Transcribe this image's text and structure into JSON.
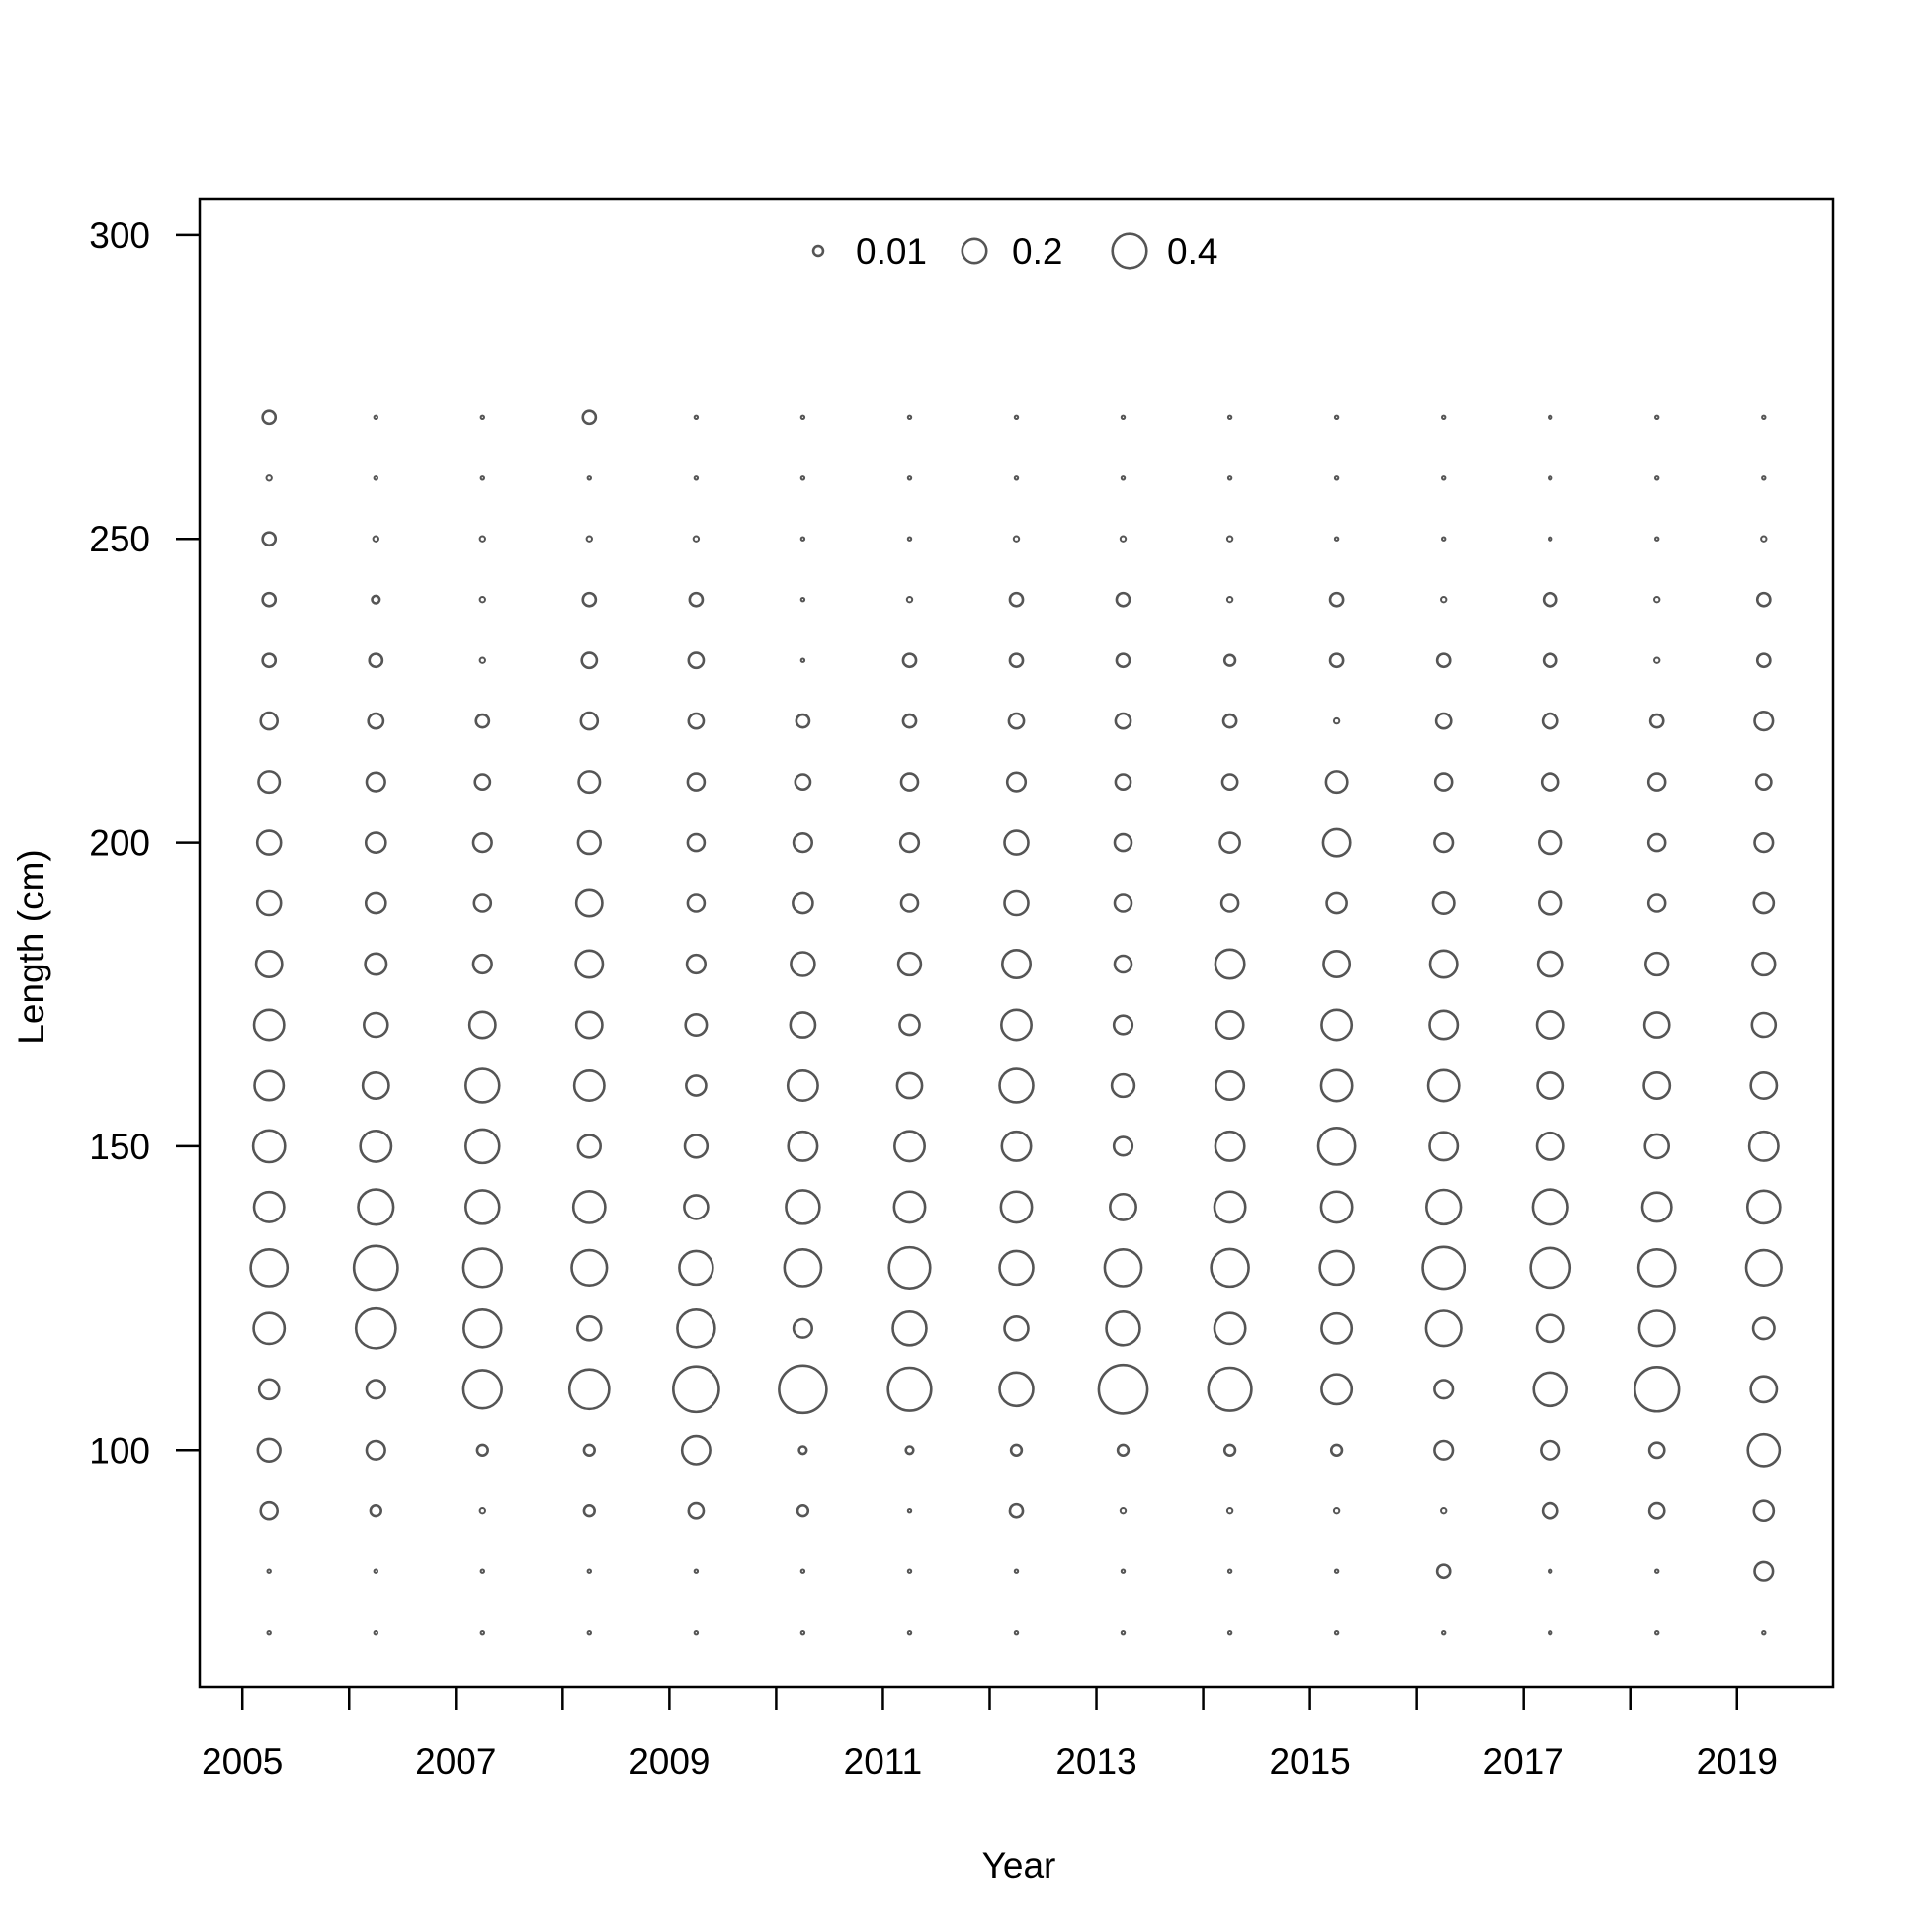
{
  "chart_data": {
    "type": "scatter",
    "subtype": "bubble",
    "title": "",
    "xlabel": "Year",
    "ylabel": "Length (cm)",
    "xlim": [
      2004.6,
      2019.9
    ],
    "ylim": [
      61,
      306
    ],
    "x_ticks": [
      2005,
      2006,
      2007,
      2008,
      2009,
      2010,
      2011,
      2012,
      2013,
      2014,
      2015,
      2016,
      2017,
      2018,
      2019
    ],
    "x_tick_labels": [
      "2005",
      "",
      "2007",
      "",
      "2009",
      "",
      "2011",
      "",
      "2013",
      "",
      "2015",
      "",
      "2017",
      "",
      "2019"
    ],
    "y_ticks": [
      100,
      150,
      200,
      250,
      300
    ],
    "y_tick_labels": [
      "100",
      "150",
      "200",
      "250",
      "300"
    ],
    "point_color": "#555555",
    "legend": {
      "placement": "top-center",
      "entries": [
        {
          "label": "0.01",
          "value": 0.01
        },
        {
          "label": "0.2",
          "value": 0.2
        },
        {
          "label": "0.4",
          "value": 0.4
        }
      ]
    },
    "grid": false,
    "x_offset_note": "",
    "years": [
      2005,
      2006,
      2007,
      2008,
      2009,
      2010,
      2011,
      2012,
      2013,
      2014,
      2015,
      2016,
      2017,
      2018,
      2019
    ],
    "x_positions": [
      2005.25,
      2006.25,
      2007.25,
      2008.25,
      2009.25,
      2010.25,
      2011.25,
      2012.25,
      2013.25,
      2014.25,
      2015.25,
      2016.25,
      2017.25,
      2018.25,
      2019.25
    ],
    "lengths": [
      70,
      80,
      90,
      100,
      110,
      120,
      130,
      140,
      150,
      160,
      170,
      180,
      190,
      200,
      210,
      220,
      230,
      240,
      250,
      260,
      270
    ],
    "values": [
      [
        0.002,
        0.002,
        0.05,
        0.09,
        0.07,
        0.17,
        0.24,
        0.16,
        0.18,
        0.15,
        0.16,
        0.12,
        0.1,
        0.1,
        0.08,
        0.05,
        0.03,
        0.03,
        0.03,
        0.005,
        0.03
      ],
      [
        0.002,
        0.002,
        0.02,
        0.06,
        0.06,
        0.28,
        0.34,
        0.22,
        0.17,
        0.12,
        0.1,
        0.08,
        0.07,
        0.07,
        0.06,
        0.04,
        0.03,
        0.01,
        0.005,
        0.002,
        0.002
      ],
      [
        0.002,
        0.002,
        0.005,
        0.02,
        0.26,
        0.25,
        0.26,
        0.2,
        0.2,
        0.2,
        0.12,
        0.06,
        0.05,
        0.06,
        0.04,
        0.03,
        0.005,
        0.005,
        0.005,
        0.002,
        0.002
      ],
      [
        0.002,
        0.002,
        0.02,
        0.02,
        0.28,
        0.1,
        0.22,
        0.18,
        0.09,
        0.16,
        0.12,
        0.13,
        0.12,
        0.09,
        0.08,
        0.05,
        0.04,
        0.03,
        0.005,
        0.002,
        0.03
      ],
      [
        0.002,
        0.002,
        0.04,
        0.14,
        0.37,
        0.25,
        0.2,
        0.1,
        0.09,
        0.07,
        0.08,
        0.06,
        0.05,
        0.05,
        0.05,
        0.04,
        0.04,
        0.03,
        0.005,
        0.002,
        0.002
      ],
      [
        0.002,
        0.002,
        0.02,
        0.01,
        0.4,
        0.06,
        0.24,
        0.2,
        0.15,
        0.16,
        0.11,
        0.1,
        0.07,
        0.06,
        0.04,
        0.03,
        0.002,
        0.002,
        0.002,
        0.002,
        0.002
      ],
      [
        0.002,
        0.002,
        0.002,
        0.01,
        0.33,
        0.2,
        0.3,
        0.17,
        0.16,
        0.11,
        0.07,
        0.09,
        0.05,
        0.06,
        0.05,
        0.03,
        0.03,
        0.005,
        0.002,
        0.002,
        0.002
      ],
      [
        0.002,
        0.002,
        0.03,
        0.02,
        0.2,
        0.1,
        0.2,
        0.17,
        0.15,
        0.2,
        0.16,
        0.14,
        0.1,
        0.1,
        0.06,
        0.04,
        0.03,
        0.03,
        0.005,
        0.002,
        0.002
      ],
      [
        0.002,
        0.002,
        0.005,
        0.02,
        0.42,
        0.2,
        0.24,
        0.12,
        0.06,
        0.09,
        0.06,
        0.05,
        0.05,
        0.05,
        0.04,
        0.04,
        0.03,
        0.03,
        0.005,
        0.002,
        0.002
      ],
      [
        0.002,
        0.002,
        0.005,
        0.02,
        0.33,
        0.17,
        0.25,
        0.17,
        0.15,
        0.14,
        0.13,
        0.15,
        0.05,
        0.07,
        0.04,
        0.03,
        0.02,
        0.005,
        0.005,
        0.002,
        0.002
      ],
      [
        0.002,
        0.002,
        0.005,
        0.02,
        0.16,
        0.16,
        0.2,
        0.17,
        0.24,
        0.17,
        0.16,
        0.12,
        0.07,
        0.13,
        0.08,
        0.005,
        0.03,
        0.03,
        0.002,
        0.002,
        0.002
      ],
      [
        0.002,
        0.03,
        0.005,
        0.06,
        0.06,
        0.22,
        0.31,
        0.21,
        0.14,
        0.17,
        0.14,
        0.13,
        0.08,
        0.06,
        0.05,
        0.04,
        0.03,
        0.005,
        0.002,
        0.002,
        0.002
      ],
      [
        0.002,
        0.002,
        0.04,
        0.06,
        0.2,
        0.13,
        0.28,
        0.22,
        0.13,
        0.12,
        0.13,
        0.11,
        0.09,
        0.09,
        0.05,
        0.04,
        0.03,
        0.03,
        0.002,
        0.002,
        0.002
      ],
      [
        0.002,
        0.002,
        0.04,
        0.04,
        0.35,
        0.22,
        0.24,
        0.15,
        0.1,
        0.12,
        0.11,
        0.09,
        0.05,
        0.05,
        0.05,
        0.03,
        0.005,
        0.005,
        0.002,
        0.002,
        0.002
      ],
      [
        0.002,
        0.06,
        0.07,
        0.18,
        0.12,
        0.08,
        0.22,
        0.19,
        0.15,
        0.12,
        0.1,
        0.09,
        0.07,
        0.06,
        0.04,
        0.06,
        0.03,
        0.03,
        0.005,
        0.002,
        0.002
      ]
    ]
  }
}
